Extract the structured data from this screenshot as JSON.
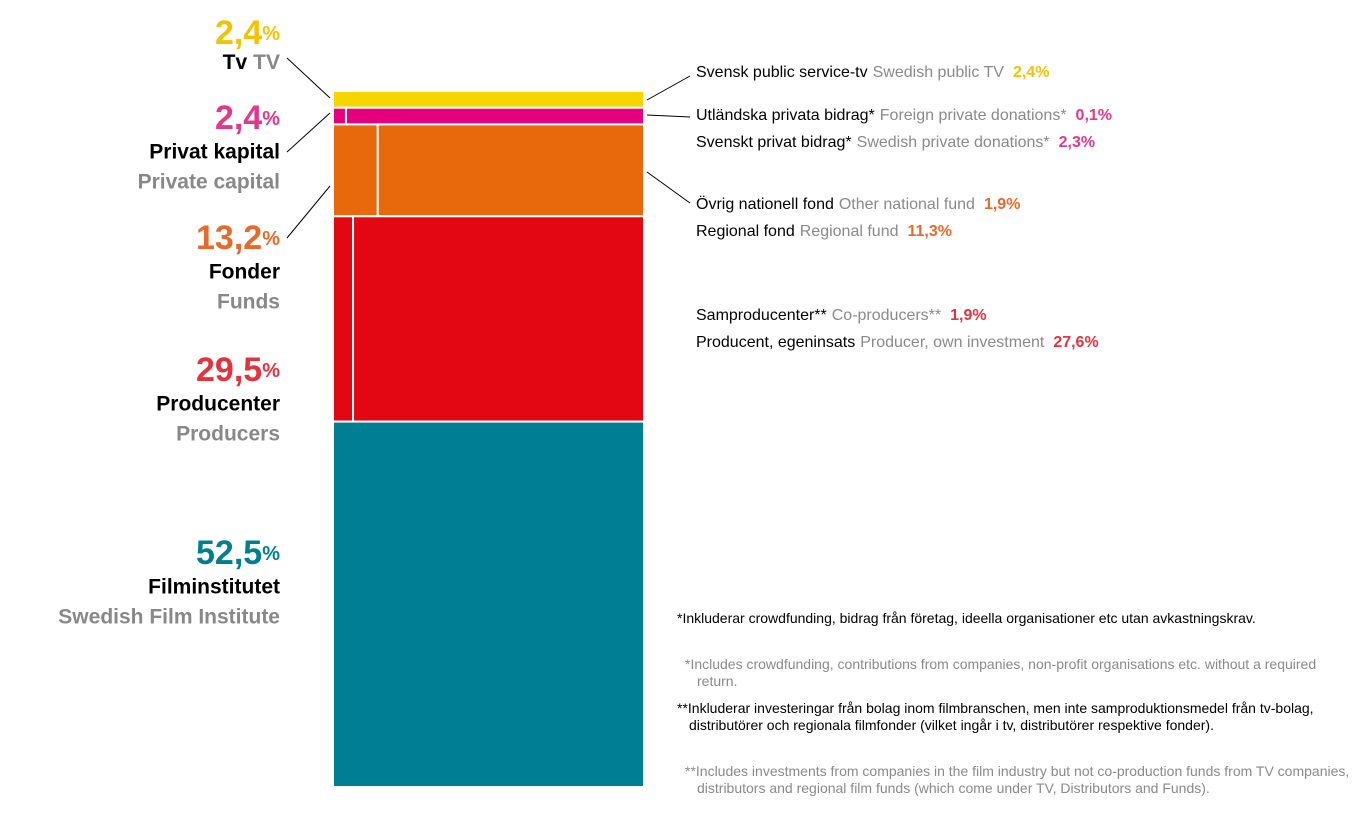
{
  "chart_data": {
    "type": "mosaic",
    "ylim": [
      0,
      100
    ],
    "segments": [
      {
        "name_sv": "Tv",
        "name_en": "TV",
        "value": 2.4,
        "value_label": "2,4%",
        "color": "#f7d500",
        "label_color": "#f4c300",
        "parts": [
          {
            "name_sv": "Svensk public service-tv",
            "name_en": "Swedish public TV",
            "value": 2.4,
            "value_label": "2,4%"
          }
        ]
      },
      {
        "name_sv": "Privat kapital",
        "name_en": "Private capital",
        "value": 2.4,
        "value_label": "2,4%",
        "color": "#e5007e",
        "label_color": "#e5378a",
        "parts": [
          {
            "name_sv": "Utländska privata bidrag*",
            "name_en": "Foreign private donations*",
            "value": 0.1,
            "value_label": "0,1%"
          },
          {
            "name_sv": "Svenskt privat bidrag*",
            "name_en": "Swedish private donations*",
            "value": 2.3,
            "value_label": "2,3%"
          }
        ]
      },
      {
        "name_sv": "Fonder",
        "name_en": "Funds",
        "value": 13.2,
        "value_label": "13,2%",
        "color": "#e8690b",
        "label_color": "#e8692a",
        "parts": [
          {
            "name_sv": "Övrig nationell fond",
            "name_en": "Other national fund",
            "value": 1.9,
            "value_label": "1,9%"
          },
          {
            "name_sv": "Regional fond",
            "name_en": "Regional fund",
            "value": 11.3,
            "value_label": "11,3%"
          }
        ]
      },
      {
        "name_sv": "Producenter",
        "name_en": "Producers",
        "value": 29.5,
        "value_label": "29,5%",
        "color": "#e30613",
        "label_color": "#e2333f",
        "parts": [
          {
            "name_sv": "Samproducenter**",
            "name_en": "Co-producers**",
            "value": 1.9,
            "value_label": "1,9%"
          },
          {
            "name_sv": "Producent, egeninsats",
            "name_en": "Producer, own investment",
            "value": 27.6,
            "value_label": "27,6%"
          }
        ]
      },
      {
        "name_sv": "Filminstitutet",
        "name_en": "Swedish Film Institute",
        "value": 52.5,
        "value_label": "52,5%",
        "color": "#007f94",
        "label_color": "#00808f"
      }
    ],
    "footnotes": [
      {
        "text": "*Inkluderar crowdfunding, bidrag från företag, ideella organisationer etc utan avkastningskrav.",
        "lang": "sv"
      },
      {
        "text": "*Includes crowdfunding, contributions from companies, non-profit organisations etc. without a required return.",
        "lang": "en"
      },
      {
        "text": "**Inkluderar investeringar från bolag inom filmbranschen, men inte samproduktionsmedel från tv-bolag, distributörer och regionala filmfonder (vilket ingår i tv, distributörer respektive fonder).",
        "lang": "sv"
      },
      {
        "text": "**Includes investments from companies in the film industry but not co-production funds from TV companies, distributors and regional film funds (which come under TV, Distributors and Funds).",
        "lang": "en"
      }
    ]
  }
}
